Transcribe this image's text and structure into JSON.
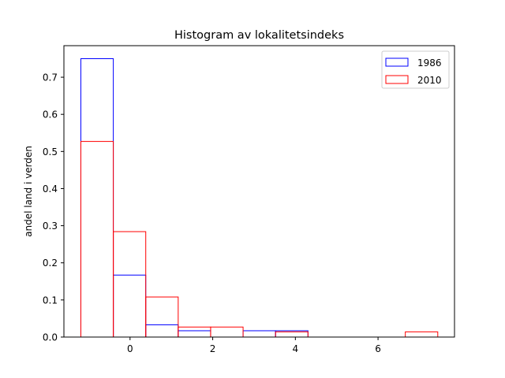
{
  "chart_data": {
    "type": "bar",
    "title": "Histogram av lokalitetsindeks",
    "xlabel": "",
    "ylabel": "andel land i verden",
    "xlim": [
      -1.6,
      7.85
    ],
    "ylim": [
      0,
      0.785
    ],
    "xticks": [
      0,
      2,
      4,
      6
    ],
    "xtick_labels": [
      "0",
      "2",
      "4",
      "6"
    ],
    "yticks": [
      0.0,
      0.1,
      0.2,
      0.3,
      0.4,
      0.5,
      0.6,
      0.7
    ],
    "ytick_labels": [
      "0.0",
      "0.1",
      "0.2",
      "0.3",
      "0.4",
      "0.5",
      "0.6",
      "0.7"
    ],
    "legend_position": "top-right",
    "histtype": "step-outline",
    "series": [
      {
        "name": "1986",
        "color": "#0000ff",
        "bins": [
          {
            "x0": -1.19,
            "x1": -0.405,
            "value": 0.75
          },
          {
            "x0": -0.405,
            "x1": 0.38,
            "value": 0.167
          },
          {
            "x0": 0.38,
            "x1": 1.165,
            "value": 0.033
          },
          {
            "x0": 1.165,
            "x1": 1.95,
            "value": 0.017
          },
          {
            "x0": 1.95,
            "x1": 2.735,
            "value": 0.0
          },
          {
            "x0": 2.735,
            "x1": 3.52,
            "value": 0.017
          },
          {
            "x0": 3.52,
            "x1": 4.305,
            "value": 0.017
          },
          {
            "x0": 4.305,
            "x1": 5.09,
            "value": 0.0
          },
          {
            "x0": 5.09,
            "x1": 5.875,
            "value": 0.0
          },
          {
            "x0": 5.875,
            "x1": 6.66,
            "value": 0.0
          }
        ]
      },
      {
        "name": "2010",
        "color": "#ff0000",
        "bins": [
          {
            "x0": -1.19,
            "x1": -0.405,
            "value": 0.527
          },
          {
            "x0": -0.405,
            "x1": 0.38,
            "value": 0.284
          },
          {
            "x0": 0.38,
            "x1": 1.165,
            "value": 0.108
          },
          {
            "x0": 1.165,
            "x1": 1.95,
            "value": 0.027
          },
          {
            "x0": 1.95,
            "x1": 2.735,
            "value": 0.027
          },
          {
            "x0": 2.735,
            "x1": 3.52,
            "value": 0.0
          },
          {
            "x0": 3.52,
            "x1": 4.305,
            "value": 0.014
          },
          {
            "x0": 4.305,
            "x1": 5.09,
            "value": 0.0
          },
          {
            "x0": 5.09,
            "x1": 5.875,
            "value": 0.0
          },
          {
            "x0": 5.875,
            "x1": 6.66,
            "value": 0.0
          },
          {
            "x0": 6.66,
            "x1": 7.445,
            "value": 0.014
          }
        ]
      }
    ]
  }
}
